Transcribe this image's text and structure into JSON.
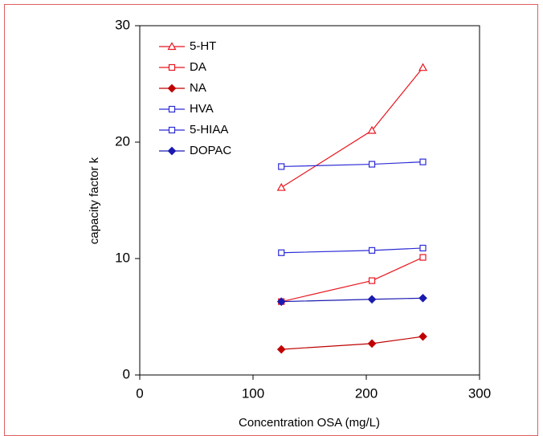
{
  "chart_data": {
    "type": "line",
    "xlabel": "Concentration OSA (mg/L)",
    "ylabel": "capacity factor k",
    "xlim": [
      0,
      300
    ],
    "xticks": [
      0,
      100,
      200,
      300
    ],
    "ylim": [
      0,
      30
    ],
    "yticks": [
      0,
      10,
      20,
      30
    ],
    "legend": "top-left",
    "series": [
      {
        "name": "5-HT",
        "color": "#e8141e",
        "marker": "triangle",
        "filled": false,
        "x": [
          125,
          205,
          250
        ],
        "values": [
          16.1,
          21.0,
          26.4
        ]
      },
      {
        "name": "DA",
        "color": "#e8141e",
        "marker": "square",
        "filled": false,
        "x": [
          125,
          205,
          250
        ],
        "values": [
          6.3,
          8.1,
          10.1
        ]
      },
      {
        "name": "NA",
        "color": "#c00000",
        "marker": "diamond",
        "filled": true,
        "x": [
          125,
          205,
          250
        ],
        "values": [
          2.2,
          2.7,
          3.3
        ]
      },
      {
        "name": "HVA",
        "color": "#2b2bd6",
        "marker": "square",
        "filled": false,
        "x": [
          125,
          205,
          250
        ],
        "values": [
          10.5,
          10.7,
          10.9
        ]
      },
      {
        "name": "5-HIAA",
        "color": "#2b2bd6",
        "marker": "square",
        "filled": false,
        "x": [
          125,
          205,
          250
        ],
        "values": [
          17.9,
          18.1,
          18.3
        ]
      },
      {
        "name": "DOPAC",
        "color": "#1a1ab0",
        "marker": "diamond",
        "filled": true,
        "x": [
          125,
          205,
          250
        ],
        "values": [
          6.3,
          6.5,
          6.6
        ]
      }
    ]
  }
}
